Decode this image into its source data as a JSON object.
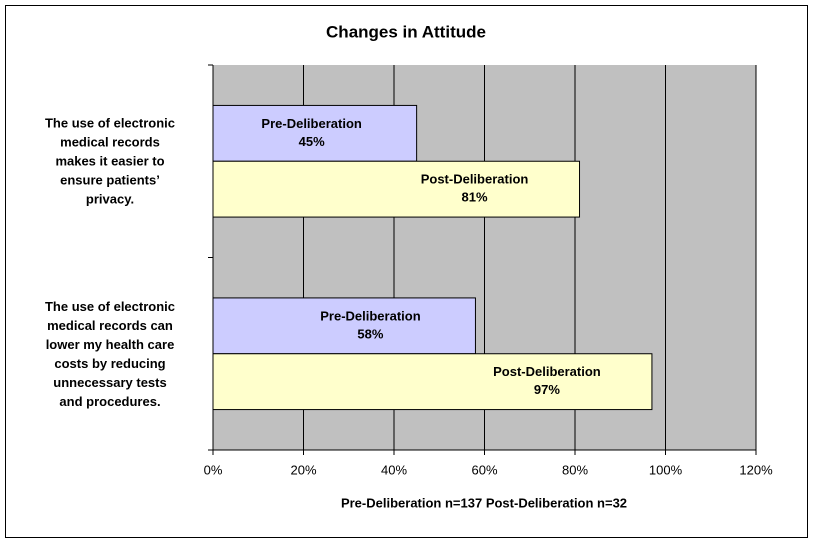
{
  "chart_data": {
    "type": "hbar",
    "title": "Changes in Attitude",
    "categories": [
      "The use of electronic\nmedical records\nmakes it easier to\nensure patients’\nprivacy.",
      "The use of electronic\nmedical records can\nlower my health care\ncosts by reducing\nunnecessary tests\nand procedures."
    ],
    "series": [
      {
        "name": "Pre-Deliberation",
        "color": "#ccccff",
        "values": [
          45,
          58
        ],
        "value_labels": [
          "45%",
          "58%"
        ]
      },
      {
        "name": "Post-Deliberation",
        "color": "#ffffcc",
        "values": [
          81,
          97
        ],
        "value_labels": [
          "81%",
          "97%"
        ]
      }
    ],
    "xlabel": "Pre-Deliberation n=137   Post-Deliberation n=32",
    "xlim": [
      0,
      120
    ],
    "xticks": [
      {
        "value": 0,
        "label": "0%"
      },
      {
        "value": 20,
        "label": "20%"
      },
      {
        "value": 40,
        "label": "40%"
      },
      {
        "value": 60,
        "label": "60%"
      },
      {
        "value": 80,
        "label": "80%"
      },
      {
        "value": 100,
        "label": "100%"
      },
      {
        "value": 120,
        "label": "120%"
      }
    ],
    "grid": true,
    "plot_background": "#c0c0c0"
  }
}
